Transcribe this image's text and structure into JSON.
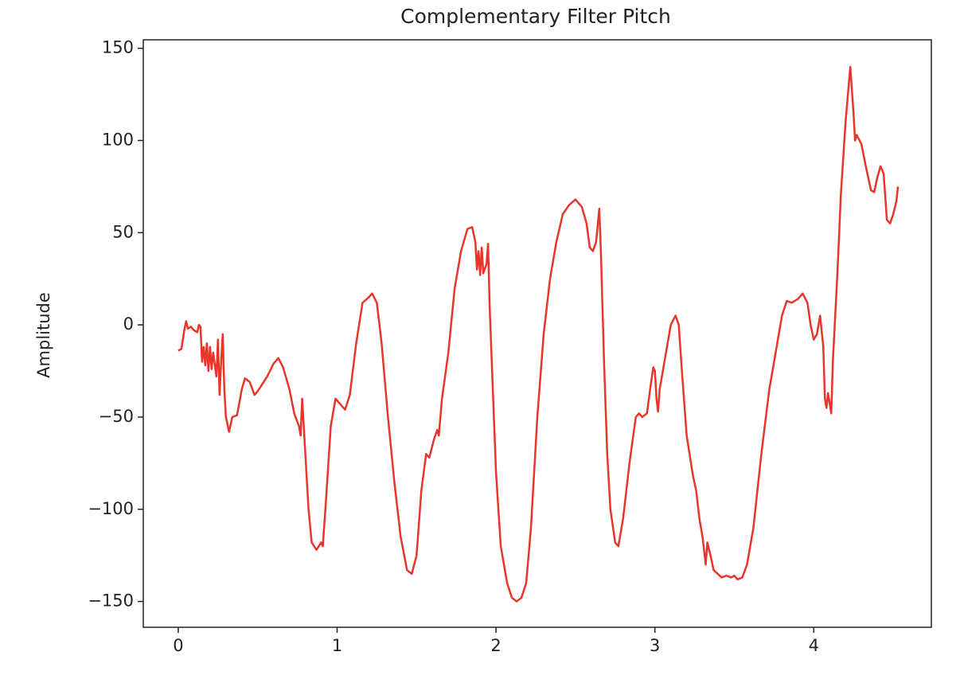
{
  "chart_data": {
    "type": "line",
    "title": "Complementary Filter Pitch",
    "ylabel": "Amplitude",
    "xlim": [
      -0.22,
      4.74
    ],
    "ylim": [
      -164,
      154.6
    ],
    "xticks": [
      0,
      1,
      2,
      3,
      4
    ],
    "yticks": [
      {
        "value": -150,
        "label": "−150"
      },
      {
        "value": -100,
        "label": "−100"
      },
      {
        "value": -50,
        "label": "−50"
      },
      0,
      50,
      100,
      150
    ],
    "series": [
      {
        "color": "#e8352a",
        "x": [
          0.0,
          0.02,
          0.04,
          0.05,
          0.06,
          0.08,
          0.1,
          0.12,
          0.13,
          0.14,
          0.15,
          0.16,
          0.17,
          0.18,
          0.19,
          0.2,
          0.21,
          0.22,
          0.24,
          0.25,
          0.26,
          0.27,
          0.28,
          0.29,
          0.3,
          0.32,
          0.34,
          0.37,
          0.4,
          0.42,
          0.45,
          0.48,
          0.5,
          0.53,
          0.56,
          0.6,
          0.63,
          0.66,
          0.7,
          0.73,
          0.76,
          0.77,
          0.78,
          0.79,
          0.82,
          0.84,
          0.87,
          0.9,
          0.91,
          0.93,
          0.96,
          0.99,
          1.02,
          1.05,
          1.08,
          1.12,
          1.16,
          1.2,
          1.22,
          1.25,
          1.28,
          1.32,
          1.36,
          1.4,
          1.44,
          1.47,
          1.5,
          1.53,
          1.56,
          1.58,
          1.61,
          1.63,
          1.64,
          1.66,
          1.7,
          1.74,
          1.78,
          1.82,
          1.85,
          1.87,
          1.88,
          1.89,
          1.9,
          1.91,
          1.92,
          1.94,
          1.95,
          1.96,
          1.98,
          2.0,
          2.03,
          2.07,
          2.1,
          2.13,
          2.16,
          2.19,
          2.22,
          2.26,
          2.3,
          2.34,
          2.38,
          2.42,
          2.46,
          2.5,
          2.54,
          2.57,
          2.59,
          2.61,
          2.63,
          2.65,
          2.66,
          2.68,
          2.7,
          2.72,
          2.75,
          2.77,
          2.8,
          2.84,
          2.88,
          2.9,
          2.92,
          2.95,
          2.97,
          2.99,
          3.0,
          3.01,
          3.02,
          3.03,
          3.06,
          3.1,
          3.13,
          3.15,
          3.17,
          3.2,
          3.24,
          3.26,
          3.28,
          3.3,
          3.32,
          3.33,
          3.35,
          3.37,
          3.42,
          3.45,
          3.48,
          3.5,
          3.52,
          3.55,
          3.58,
          3.62,
          3.67,
          3.72,
          3.76,
          3.8,
          3.83,
          3.86,
          3.9,
          3.93,
          3.96,
          3.98,
          4.0,
          4.02,
          4.04,
          4.06,
          4.07,
          4.08,
          4.09,
          4.11,
          4.12,
          4.15,
          4.17,
          4.2,
          4.22,
          4.23,
          4.25,
          4.26,
          4.27,
          4.3,
          4.33,
          4.36,
          4.38,
          4.4,
          4.42,
          4.44,
          4.46,
          4.48,
          4.5,
          4.52,
          4.53
        ],
        "values": [
          -14,
          -13,
          -2,
          2,
          -2,
          -1,
          -3,
          -4,
          0,
          -1,
          -20,
          -12,
          -22,
          -10,
          -25,
          -12,
          -24,
          -15,
          -28,
          -8,
          -38,
          -20,
          -5,
          -35,
          -50,
          -58,
          -50,
          -49,
          -35,
          -29,
          -31,
          -38,
          -36,
          -32,
          -28,
          -21,
          -18,
          -23,
          -35,
          -48,
          -55,
          -60,
          -40,
          -55,
          -100,
          -118,
          -122,
          -118,
          -120,
          -95,
          -55,
          -40,
          -43,
          -46,
          -38,
          -10,
          12,
          15,
          17,
          12,
          -10,
          -50,
          -85,
          -115,
          -133,
          -135,
          -125,
          -90,
          -70,
          -72,
          -62,
          -57,
          -60,
          -40,
          -15,
          20,
          40,
          52,
          53,
          45,
          30,
          40,
          27,
          42,
          28,
          33,
          44,
          10,
          -35,
          -80,
          -120,
          -140,
          -148,
          -150,
          -148,
          -140,
          -110,
          -50,
          -5,
          25,
          45,
          60,
          65,
          68,
          64,
          55,
          42,
          40,
          45,
          63,
          40,
          -20,
          -70,
          -100,
          -118,
          -120,
          -105,
          -75,
          -50,
          -48,
          -50,
          -48,
          -35,
          -23,
          -25,
          -40,
          -47,
          -35,
          -20,
          0,
          5,
          0,
          -25,
          -60,
          -82,
          -90,
          -105,
          -115,
          -130,
          -118,
          -125,
          -133,
          -137,
          -136,
          -137,
          -136,
          -138,
          -137,
          -130,
          -110,
          -70,
          -35,
          -15,
          5,
          13,
          12,
          14,
          17,
          12,
          0,
          -8,
          -5,
          5,
          -12,
          -40,
          -45,
          -37,
          -48,
          -20,
          30,
          70,
          110,
          130,
          140,
          115,
          100,
          103,
          98,
          85,
          73,
          72,
          80,
          86,
          82,
          57,
          55,
          60,
          67,
          75
        ]
      }
    ]
  }
}
